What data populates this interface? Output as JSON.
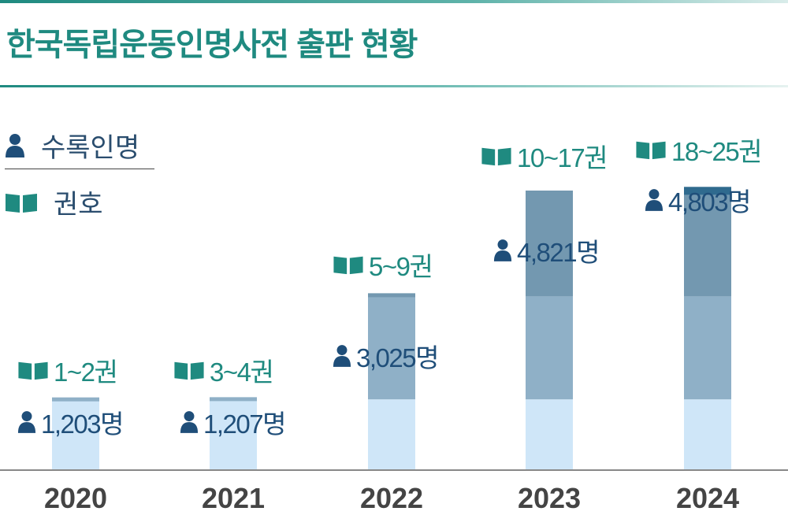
{
  "title": "한국독립운동인명사전 출판 현황",
  "legend": {
    "people": "수록인명",
    "volumes": "권호"
  },
  "colors": {
    "title": "#1f8a80",
    "people": "#1f4e79",
    "volumes": "#1f8a80",
    "seg1": "#cfe6f8",
    "seg2": "#8fb0c7",
    "seg3": "#7398b0",
    "seg4": "#2f6a8e",
    "axis": "#888888"
  },
  "chart_data": {
    "type": "bar",
    "title": "한국독립운동인명사전 출판 현황",
    "categories": [
      "2020",
      "2021",
      "2022",
      "2023",
      "2024"
    ],
    "stacked": true,
    "ylim": [
      0,
      5000
    ],
    "series": [
      {
        "name": "",
        "values": [
          1203,
          1207,
          1224,
          1224,
          1224
        ]
      },
      {
        "name": "",
        "values": [
          0,
          0,
          1801,
          1801,
          1801
        ]
      },
      {
        "name": "",
        "values": [
          0,
          0,
          0,
          1796,
          1796
        ]
      },
      {
        "name": "",
        "values": [
          0,
          0,
          0,
          0,
          -18
        ]
      }
    ],
    "totals": [
      1203,
      1207,
      3025,
      4821,
      4803
    ],
    "people_labels": [
      "1,203명",
      "1,207명",
      "3,025명",
      "4,821명",
      "4,803명"
    ],
    "volume_labels": [
      "1~2권",
      "3~4권",
      "5~9권",
      "10~17권",
      "18~25권"
    ]
  }
}
